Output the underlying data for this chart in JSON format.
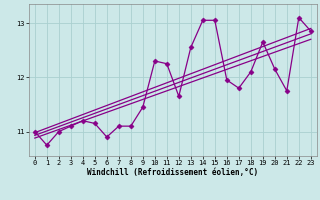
{
  "x": [
    0,
    1,
    2,
    3,
    4,
    5,
    6,
    7,
    8,
    9,
    10,
    11,
    12,
    13,
    14,
    15,
    16,
    17,
    18,
    19,
    20,
    21,
    22,
    23
  ],
  "y_main": [
    11.0,
    10.75,
    11.0,
    11.1,
    11.2,
    11.15,
    10.9,
    11.1,
    11.1,
    11.45,
    12.3,
    12.25,
    11.65,
    12.55,
    13.05,
    13.05,
    11.95,
    11.8,
    12.1,
    12.65,
    12.15,
    11.75,
    13.1,
    12.85
  ],
  "trend1_x": [
    0,
    23
  ],
  "trend1_y": [
    10.88,
    12.7
  ],
  "trend2_x": [
    0,
    23
  ],
  "trend2_y": [
    10.93,
    12.8
  ],
  "trend3_x": [
    0,
    23
  ],
  "trend3_y": [
    10.98,
    12.9
  ],
  "color": "#880088",
  "bg_color": "#cce8e8",
  "xlabel": "Windchill (Refroidissement éolien,°C)",
  "ylim": [
    10.55,
    13.35
  ],
  "xlim": [
    -0.5,
    23.5
  ],
  "yticks": [
    11,
    12,
    13
  ],
  "xticks": [
    0,
    1,
    2,
    3,
    4,
    5,
    6,
    7,
    8,
    9,
    10,
    11,
    12,
    13,
    14,
    15,
    16,
    17,
    18,
    19,
    20,
    21,
    22,
    23
  ],
  "grid_color": "#aad0d0",
  "marker": "D",
  "markersize": 2.5,
  "linewidth": 0.9,
  "trend_linewidth": 0.9
}
